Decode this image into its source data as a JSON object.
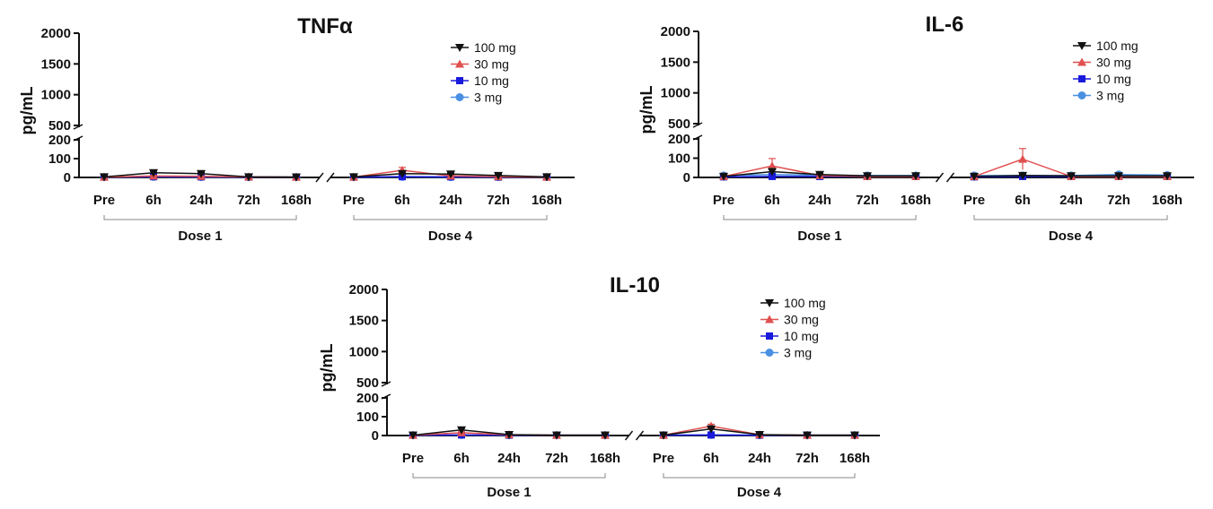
{
  "chart_data": [
    {
      "type": "line",
      "title": "TNFα",
      "ylabel": "pg/mL",
      "y_ticks_upper": [
        500,
        1000,
        1500,
        2000
      ],
      "y_ticks_lower": [
        0,
        100,
        200
      ],
      "ylim_lower": [
        0,
        200
      ],
      "ylim_upper": [
        500,
        2000
      ],
      "timepoints": [
        "Pre",
        "6h",
        "24h",
        "72h",
        "168h"
      ],
      "groups": [
        "Dose 1",
        "Dose 4"
      ],
      "series": [
        {
          "name": "100 mg",
          "color": "#111111",
          "marker": "triangle-down",
          "values": [
            [
              3,
              25,
              20,
              3,
              2
            ],
            [
              3,
              20,
              18,
              10,
              3
            ]
          ],
          "errors": [
            [
              0,
              8,
              6,
              0,
              0
            ],
            [
              0,
              10,
              6,
              3,
              0
            ]
          ]
        },
        {
          "name": "30 mg",
          "color": "#e05050",
          "marker": "triangle-up",
          "values": [
            [
              2,
              8,
              6,
              3,
              2
            ],
            [
              2,
              38,
              8,
              4,
              2
            ]
          ],
          "errors": [
            [
              0,
              3,
              2,
              0,
              0
            ],
            [
              0,
              15,
              3,
              0,
              0
            ]
          ]
        },
        {
          "name": "10 mg",
          "color": "#1a1adc",
          "marker": "square",
          "values": [
            [
              2,
              4,
              3,
              2,
              2
            ],
            [
              2,
              4,
              3,
              2,
              2
            ]
          ],
          "errors": [
            [
              0,
              0,
              0,
              0,
              0
            ],
            [
              0,
              0,
              0,
              0,
              0
            ]
          ]
        },
        {
          "name": "3 mg",
          "color": "#4a90e2",
          "marker": "circle",
          "values": [
            [
              2,
              3,
              2,
              2,
              2
            ],
            [
              2,
              3,
              2,
              2,
              2
            ]
          ],
          "errors": [
            [
              0,
              0,
              0,
              0,
              0
            ],
            [
              0,
              0,
              0,
              0,
              0
            ]
          ]
        }
      ]
    },
    {
      "type": "line",
      "title": "IL-6",
      "ylabel": "pg/mL",
      "y_ticks_upper": [
        500,
        1000,
        1500,
        2000
      ],
      "y_ticks_lower": [
        0,
        100,
        200
      ],
      "ylim_lower": [
        0,
        200
      ],
      "ylim_upper": [
        500,
        2000
      ],
      "timepoints": [
        "Pre",
        "6h",
        "24h",
        "72h",
        "168h"
      ],
      "groups": [
        "Dose 1",
        "Dose 4"
      ],
      "series": [
        {
          "name": "100 mg",
          "color": "#111111",
          "marker": "triangle-down",
          "values": [
            [
              5,
              30,
              15,
              8,
              8
            ],
            [
              5,
              10,
              8,
              8,
              8
            ]
          ],
          "errors": [
            [
              0,
              10,
              5,
              0,
              0
            ],
            [
              0,
              5,
              0,
              0,
              0
            ]
          ]
        },
        {
          "name": "30 mg",
          "color": "#e05050",
          "marker": "triangle-up",
          "values": [
            [
              5,
              60,
              10,
              5,
              5
            ],
            [
              5,
              95,
              5,
              5,
              5
            ]
          ],
          "errors": [
            [
              0,
              38,
              5,
              0,
              0
            ],
            [
              0,
              55,
              0,
              0,
              0
            ]
          ]
        },
        {
          "name": "10 mg",
          "color": "#1a1adc",
          "marker": "square",
          "values": [
            [
              3,
              5,
              5,
              5,
              5
            ],
            [
              3,
              5,
              5,
              5,
              5
            ]
          ],
          "errors": [
            [
              0,
              0,
              0,
              0,
              0
            ],
            [
              0,
              0,
              0,
              0,
              0
            ]
          ]
        },
        {
          "name": "3 mg",
          "color": "#4a90e2",
          "marker": "circle",
          "values": [
            [
              10,
              15,
              12,
              10,
              10
            ],
            [
              10,
              10,
              10,
              15,
              12
            ]
          ],
          "errors": [
            [
              0,
              5,
              0,
              0,
              0
            ],
            [
              0,
              0,
              0,
              3,
              0
            ]
          ]
        }
      ]
    },
    {
      "type": "line",
      "title": "IL-10",
      "ylabel": "pg/mL",
      "y_ticks_upper": [
        500,
        1000,
        1500,
        2000
      ],
      "y_ticks_lower": [
        0,
        100,
        200
      ],
      "ylim_lower": [
        0,
        200
      ],
      "ylim_upper": [
        500,
        2000
      ],
      "timepoints": [
        "Pre",
        "6h",
        "24h",
        "72h",
        "168h"
      ],
      "groups": [
        "Dose 1",
        "Dose 4"
      ],
      "series": [
        {
          "name": "100 mg",
          "color": "#111111",
          "marker": "triangle-down",
          "values": [
            [
              2,
              30,
              5,
              2,
              2
            ],
            [
              2,
              35,
              5,
              2,
              2
            ]
          ],
          "errors": [
            [
              0,
              8,
              2,
              0,
              0
            ],
            [
              0,
              8,
              2,
              0,
              0
            ]
          ]
        },
        {
          "name": "30 mg",
          "color": "#e05050",
          "marker": "triangle-up",
          "values": [
            [
              2,
              15,
              4,
              2,
              2
            ],
            [
              2,
              50,
              4,
              2,
              2
            ]
          ],
          "errors": [
            [
              0,
              5,
              0,
              0,
              0
            ],
            [
              0,
              10,
              0,
              0,
              0
            ]
          ]
        },
        {
          "name": "10 mg",
          "color": "#1a1adc",
          "marker": "square",
          "values": [
            [
              2,
              3,
              2,
              2,
              2
            ],
            [
              2,
              3,
              2,
              2,
              2
            ]
          ],
          "errors": [
            [
              0,
              0,
              0,
              0,
              0
            ],
            [
              0,
              0,
              0,
              0,
              0
            ]
          ]
        },
        {
          "name": "3 mg",
          "color": "#4a90e2",
          "marker": "circle",
          "values": [
            [
              2,
              3,
              2,
              2,
              2
            ],
            [
              2,
              3,
              2,
              2,
              2
            ]
          ],
          "errors": [
            [
              0,
              0,
              0,
              0,
              0
            ],
            [
              0,
              0,
              0,
              0,
              0
            ]
          ]
        }
      ]
    }
  ]
}
